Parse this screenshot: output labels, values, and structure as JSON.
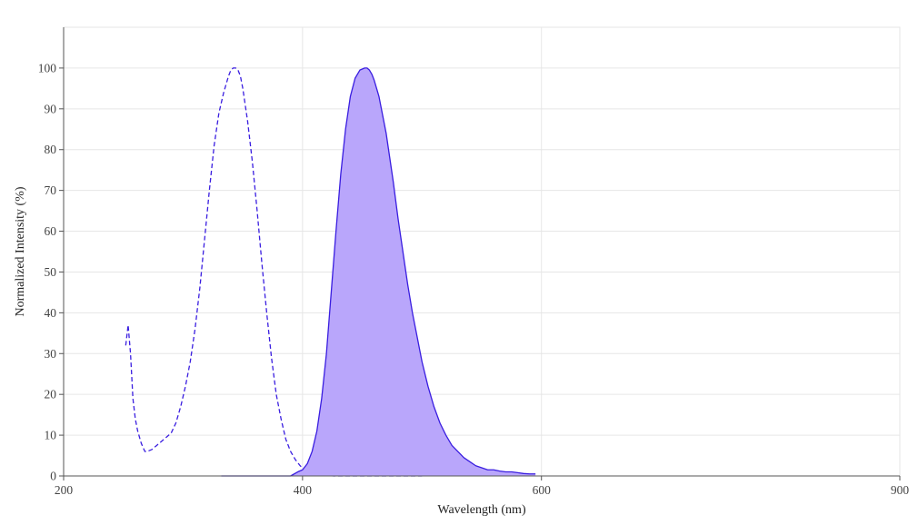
{
  "chart_data": {
    "type": "area",
    "xlabel": "Wavelength (nm)",
    "ylabel": "Normalized Intensity (%)",
    "xlim": [
      200,
      900
    ],
    "ylim": [
      0,
      110
    ],
    "x_ticks": [
      200,
      400,
      600,
      900
    ],
    "y_ticks": [
      0,
      10,
      20,
      30,
      40,
      50,
      60,
      70,
      80,
      90,
      100
    ],
    "grid": true,
    "legend": "none",
    "colors": {
      "line": "#3a1ee0",
      "fill": "#b9a6fb",
      "grid": "#e6e6e6",
      "axis": "#555555"
    },
    "series": [
      {
        "style": "dashed",
        "x": [
          252,
          254,
          256,
          258,
          260,
          262,
          265,
          268,
          270,
          274,
          278,
          282,
          286,
          290,
          294,
          298,
          302,
          306,
          310,
          314,
          318,
          322,
          326,
          330,
          334,
          338,
          340,
          342,
          344,
          346,
          348,
          350,
          352,
          354,
          358,
          362,
          366,
          370,
          374,
          378,
          382,
          386,
          390,
          394,
          398,
          402,
          406,
          410,
          414,
          418,
          422,
          426,
          430,
          440,
          460,
          480,
          500
        ],
        "y": [
          32,
          37,
          30,
          19,
          14,
          11,
          8,
          6,
          6,
          6.5,
          7.5,
          8.5,
          9.5,
          10.5,
          13,
          17,
          22,
          28,
          36,
          46,
          58,
          70,
          81,
          89,
          94,
          98,
          99.5,
          100,
          100,
          99.5,
          98,
          95,
          91,
          87,
          77,
          65,
          52,
          40,
          29,
          20,
          14,
          9,
          6,
          4,
          2.5,
          1.5,
          1,
          0.5,
          0.3,
          0.2,
          0.1,
          0,
          0,
          0,
          0,
          0,
          0
        ]
      },
      {
        "style": "solid",
        "fill": true,
        "x": [
          332,
          340,
          350,
          360,
          370,
          380,
          390,
          396,
          400,
          404,
          408,
          412,
          416,
          420,
          424,
          428,
          432,
          436,
          440,
          444,
          448,
          452,
          454,
          456,
          458,
          460,
          462,
          464,
          466,
          468,
          470,
          472,
          476,
          480,
          484,
          488,
          492,
          496,
          500,
          505,
          510,
          515,
          520,
          525,
          530,
          535,
          540,
          545,
          550,
          555,
          560,
          565,
          570,
          575,
          580,
          585,
          590,
          595
        ],
        "y": [
          0,
          0,
          0,
          0,
          0,
          0,
          0,
          1,
          1.5,
          3,
          6,
          11,
          19,
          30,
          45,
          60,
          74,
          85,
          93,
          97.5,
          99.5,
          100,
          100,
          99.5,
          98.5,
          97,
          95,
          93,
          90,
          87,
          84,
          80,
          72,
          63,
          55,
          47,
          40,
          34,
          28,
          22,
          17,
          13,
          10,
          7.5,
          6,
          4.5,
          3.5,
          2.5,
          2,
          1.5,
          1.5,
          1.2,
          1,
          1,
          0.8,
          0.6,
          0.5,
          0.5
        ]
      }
    ]
  }
}
